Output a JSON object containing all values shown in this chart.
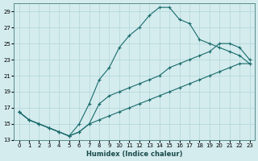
{
  "xlabel": "Humidex (Indice chaleur)",
  "background_color": "#d4ecee",
  "grid_color": "#b8d8db",
  "line_color": "#1a6b6b",
  "xlim": [
    -0.5,
    23.5
  ],
  "ylim": [
    13,
    30
  ],
  "xticks": [
    0,
    1,
    2,
    3,
    4,
    5,
    6,
    7,
    8,
    9,
    10,
    11,
    12,
    13,
    14,
    15,
    16,
    17,
    18,
    19,
    20,
    21,
    22,
    23
  ],
  "yticks": [
    13,
    15,
    17,
    19,
    21,
    23,
    25,
    27,
    29
  ],
  "series_peak_x": [
    0,
    1,
    2,
    3,
    4,
    5,
    6,
    7,
    8,
    9,
    10,
    11,
    12,
    13,
    14,
    15,
    16,
    17,
    18,
    19,
    20,
    21,
    22,
    23
  ],
  "series_peak_y": [
    16.5,
    15.5,
    15.0,
    14.5,
    14.0,
    13.5,
    15.0,
    17.5,
    20.5,
    22.0,
    24.5,
    26.0,
    27.0,
    28.5,
    29.5,
    29.5,
    28.0,
    27.5,
    25.5,
    25.0,
    24.5,
    24.0,
    23.5,
    22.5
  ],
  "series_mid_x": [
    0,
    1,
    2,
    3,
    4,
    5,
    6,
    7,
    8,
    9,
    10,
    11,
    12,
    13,
    14,
    15,
    16,
    17,
    18,
    19,
    20,
    21,
    22,
    23
  ],
  "series_mid_y": [
    16.5,
    15.5,
    15.0,
    14.5,
    14.0,
    13.5,
    14.0,
    15.0,
    17.5,
    18.5,
    19.0,
    19.5,
    20.0,
    20.5,
    21.0,
    22.0,
    22.5,
    23.0,
    23.5,
    24.0,
    25.0,
    25.0,
    24.5,
    23.0
  ],
  "series_low_x": [
    0,
    1,
    2,
    3,
    4,
    5,
    6,
    7,
    8,
    9,
    10,
    11,
    12,
    13,
    14,
    15,
    16,
    17,
    18,
    19,
    20,
    21,
    22,
    23
  ],
  "series_low_y": [
    16.5,
    15.5,
    15.0,
    14.5,
    14.0,
    13.5,
    14.0,
    15.0,
    15.5,
    16.0,
    16.5,
    17.0,
    17.5,
    18.0,
    18.5,
    19.0,
    19.5,
    20.0,
    20.5,
    21.0,
    21.5,
    22.0,
    22.5,
    22.5
  ]
}
